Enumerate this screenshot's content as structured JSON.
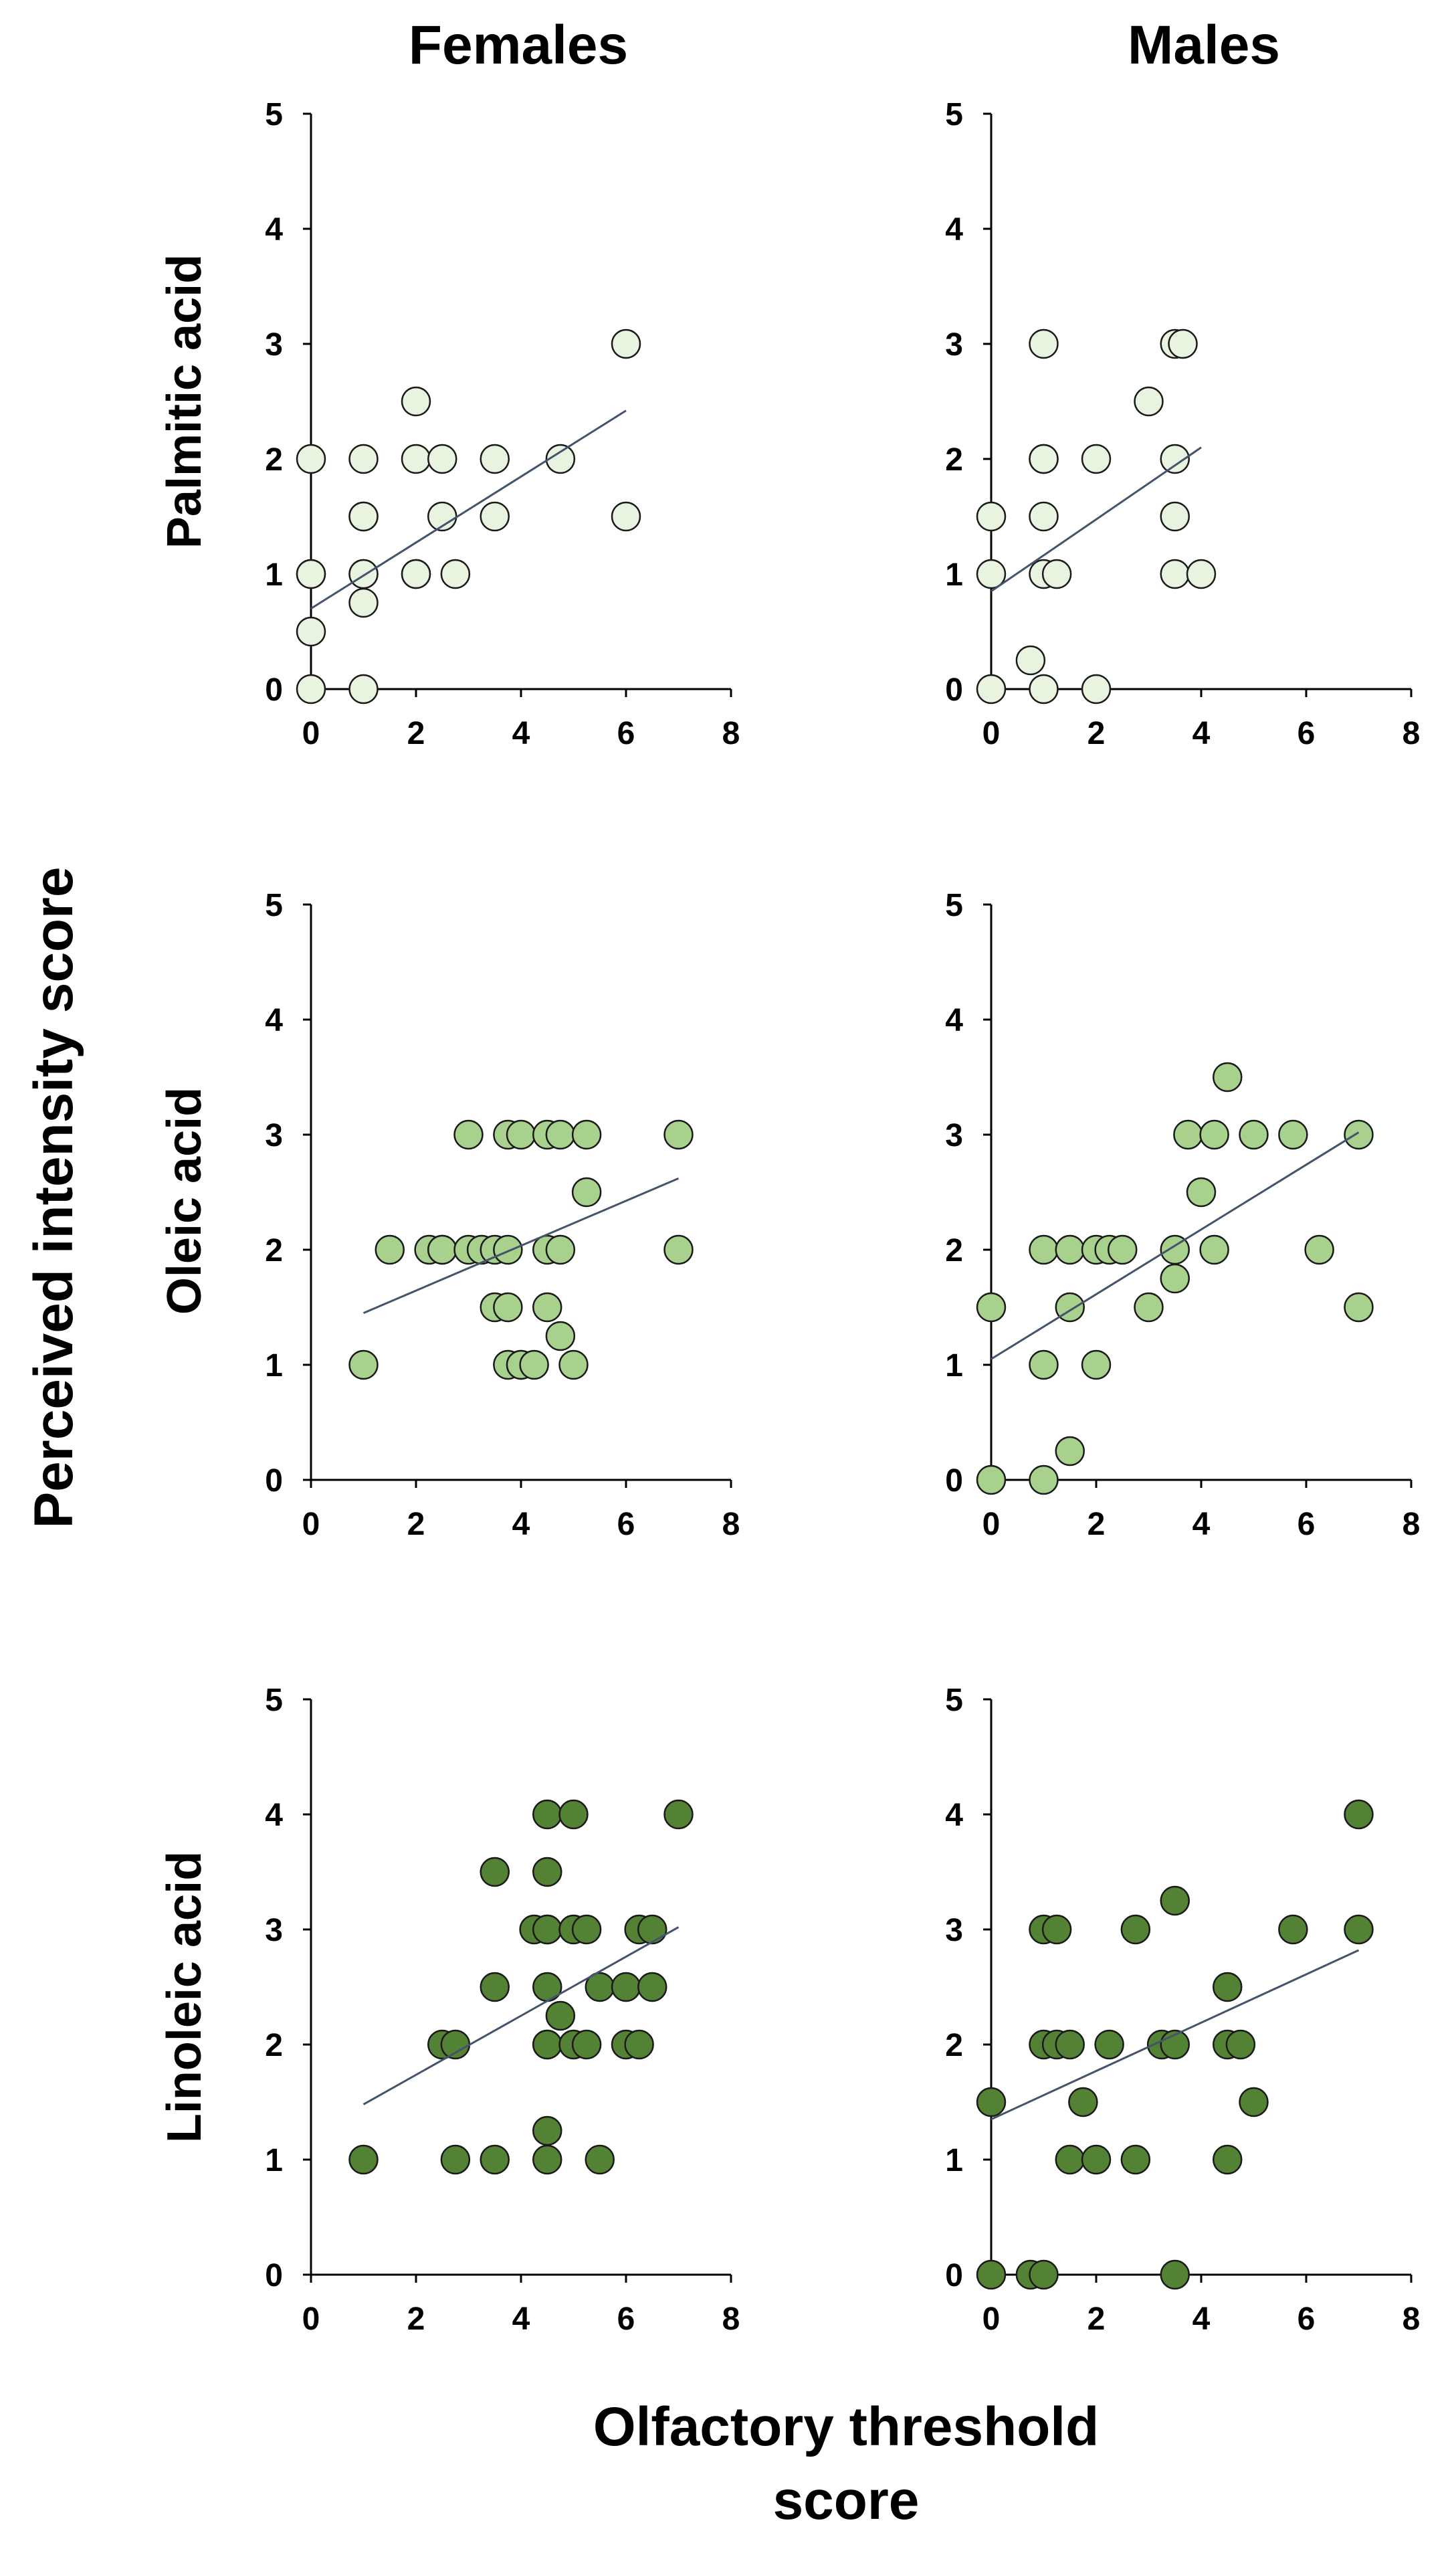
{
  "figure": {
    "column_titles": [
      "Females",
      "Males"
    ],
    "row_labels": [
      "Palmitic acid",
      "Oleic acid",
      "Linoleic acid"
    ],
    "y_axis_title": "Perceived intensity score",
    "x_axis_title_line1": "Olfactory threshold",
    "x_axis_title_line2": "score"
  },
  "colors": {
    "palmitic": "#e8f3e0",
    "oleic": "#a9d18e",
    "linoleic": "#548235",
    "trendline": "#44546a"
  },
  "chart_data": [
    {
      "type": "scatter",
      "title": "Females",
      "row": "Palmitic acid",
      "series_color_key": "palmitic",
      "xlabel": "Olfactory threshold score",
      "ylabel": "Perceived intensity score",
      "xlim": [
        0,
        8
      ],
      "ylim": [
        0,
        5
      ],
      "xticks": [
        0,
        2,
        4,
        6,
        8
      ],
      "yticks": [
        0,
        1,
        2,
        3,
        4,
        5
      ],
      "x": [
        0,
        0,
        0,
        0,
        0,
        1,
        1,
        1,
        1,
        1,
        1,
        1,
        2,
        2,
        2,
        2,
        2.5,
        2.5,
        2.75,
        3.5,
        3.5,
        4.75,
        6,
        6
      ],
      "y": [
        0,
        0.5,
        1,
        2,
        1,
        0,
        0.75,
        1,
        1,
        1.5,
        1.5,
        2,
        1,
        1,
        2,
        2.5,
        2,
        1.5,
        1,
        2,
        1.5,
        2,
        3,
        1.5
      ],
      "trendline": {
        "x": [
          0,
          6
        ],
        "y": [
          0.7,
          2.42
        ]
      }
    },
    {
      "type": "scatter",
      "title": "Males",
      "row": "Palmitic acid",
      "series_color_key": "palmitic",
      "xlabel": "Olfactory threshold score",
      "ylabel": "Perceived intensity score",
      "xlim": [
        0,
        8
      ],
      "ylim": [
        0,
        5
      ],
      "xticks": [
        0,
        2,
        4,
        6,
        8
      ],
      "yticks": [
        0,
        1,
        2,
        3,
        4,
        5
      ],
      "x": [
        0,
        0,
        0,
        0.75,
        1,
        1,
        1,
        1,
        1,
        1,
        1.25,
        2,
        2,
        3,
        3.5,
        3.5,
        3.5,
        3.5,
        3.65,
        4
      ],
      "y": [
        0,
        1,
        1.5,
        0.25,
        0,
        1,
        1.5,
        2,
        2,
        3,
        1,
        0,
        2,
        2.5,
        1,
        1.5,
        2,
        3,
        3,
        1
      ],
      "trendline": {
        "x": [
          0,
          4
        ],
        "y": [
          0.85,
          2.1
        ]
      }
    },
    {
      "type": "scatter",
      "title": "Females",
      "row": "Oleic acid",
      "series_color_key": "oleic",
      "xlabel": "Olfactory threshold score",
      "ylabel": "Perceived intensity score",
      "xlim": [
        0,
        8
      ],
      "ylim": [
        0,
        5
      ],
      "xticks": [
        0,
        2,
        4,
        6,
        8
      ],
      "yticks": [
        0,
        1,
        2,
        3,
        4,
        5
      ],
      "x": [
        1,
        1.5,
        2.25,
        2.5,
        2.5,
        3,
        3,
        3.25,
        3.5,
        3.5,
        3.75,
        3.75,
        3.75,
        3.75,
        4,
        4,
        4,
        4.25,
        4.5,
        4.5,
        4.5,
        4.75,
        4.75,
        4.75,
        5,
        5.25,
        5.25,
        7,
        7
      ],
      "y": [
        1,
        2,
        2,
        2,
        2,
        2,
        3,
        2,
        1.5,
        2,
        1,
        1.5,
        2,
        3,
        1,
        3,
        1,
        1,
        1.5,
        2,
        3,
        1.25,
        2,
        3,
        1,
        2.5,
        3,
        2,
        3
      ],
      "trendline": {
        "x": [
          1,
          7
        ],
        "y": [
          1.45,
          2.62
        ]
      }
    },
    {
      "type": "scatter",
      "title": "Males",
      "row": "Oleic acid",
      "series_color_key": "oleic",
      "xlabel": "Olfactory threshold score",
      "ylabel": "Perceived intensity score",
      "xlim": [
        0,
        8
      ],
      "ylim": [
        0,
        5
      ],
      "xticks": [
        0,
        2,
        4,
        6,
        8
      ],
      "yticks": [
        0,
        1,
        2,
        3,
        4,
        5
      ],
      "x": [
        0,
        0,
        1,
        1,
        1,
        1.5,
        1.5,
        1.5,
        2,
        2,
        2.25,
        2.5,
        3,
        3.5,
        3.5,
        3.75,
        4,
        4.25,
        4.25,
        4.5,
        5,
        5.75,
        6.25,
        7,
        7
      ],
      "y": [
        0,
        1.5,
        0,
        1,
        2,
        0.25,
        1.5,
        2,
        1,
        2,
        2,
        2,
        1.5,
        1.75,
        2,
        3,
        2.5,
        2,
        3,
        3.5,
        3,
        3,
        2,
        1.5,
        3
      ],
      "trendline": {
        "x": [
          0,
          7
        ],
        "y": [
          1.05,
          3.02
        ]
      }
    },
    {
      "type": "scatter",
      "title": "Females",
      "row": "Linoleic acid",
      "series_color_key": "linoleic",
      "xlabel": "Olfactory threshold score",
      "ylabel": "Perceived intensity score",
      "xlim": [
        0,
        8
      ],
      "ylim": [
        0,
        5
      ],
      "xticks": [
        0,
        2,
        4,
        6,
        8
      ],
      "yticks": [
        0,
        1,
        2,
        3,
        4,
        5
      ],
      "x": [
        1,
        2.5,
        2.75,
        2.75,
        3.5,
        3.5,
        3.5,
        4.25,
        4.5,
        4.5,
        4.5,
        4.5,
        4.5,
        4.5,
        4.5,
        4.5,
        4.5,
        4.75,
        5,
        5,
        5,
        5.25,
        5.25,
        5.5,
        5.5,
        6,
        6,
        6.25,
        6.25,
        6.5,
        6.5,
        7
      ],
      "y": [
        1,
        2,
        1,
        2,
        1,
        2.5,
        3.5,
        3,
        1,
        1.25,
        2,
        2,
        2.5,
        3,
        3,
        3.5,
        4,
        2.25,
        2,
        3,
        4,
        2,
        3,
        1,
        2.5,
        2,
        2.5,
        2,
        3,
        2.5,
        3,
        4
      ],
      "trendline": {
        "x": [
          1,
          7
        ],
        "y": [
          1.48,
          3.02
        ]
      }
    },
    {
      "type": "scatter",
      "title": "Males",
      "row": "Linoleic acid",
      "series_color_key": "linoleic",
      "xlabel": "Olfactory threshold score",
      "ylabel": "Perceived intensity score",
      "xlim": [
        0,
        8
      ],
      "ylim": [
        0,
        5
      ],
      "xticks": [
        0,
        2,
        4,
        6,
        8
      ],
      "yticks": [
        0,
        1,
        2,
        3,
        4,
        5
      ],
      "x": [
        0,
        0,
        0.75,
        1,
        1,
        1,
        1.25,
        1.25,
        1.5,
        1.5,
        1.75,
        2,
        2.25,
        2.75,
        2.75,
        3.25,
        3.5,
        3.5,
        3.5,
        4.5,
        4.5,
        4.5,
        4.75,
        5,
        5.75,
        7,
        7
      ],
      "y": [
        0,
        1.5,
        0,
        0,
        2,
        3,
        2,
        3,
        1,
        2,
        1.5,
        1,
        2,
        1,
        3,
        2,
        0,
        2,
        3.25,
        1,
        2,
        2.5,
        2,
        1.5,
        3,
        3,
        4
      ],
      "trendline": {
        "x": [
          0,
          7
        ],
        "y": [
          1.35,
          2.82
        ]
      }
    }
  ]
}
